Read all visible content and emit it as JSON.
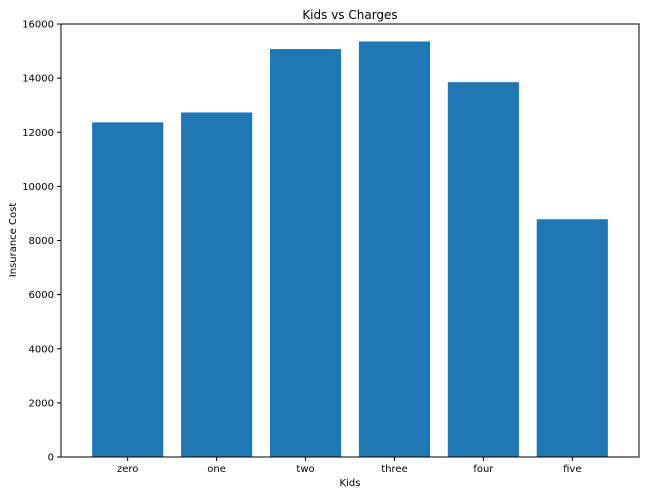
{
  "chart_data": {
    "type": "bar",
    "title": "Kids vs Charges",
    "xlabel": "Kids",
    "ylabel": "Insurance Cost",
    "categories": [
      "zero",
      "one",
      "two",
      "three",
      "four",
      "five"
    ],
    "values": [
      12366,
      12731,
      15074,
      15355,
      13851,
      8786
    ],
    "ylim": [
      0,
      16000
    ],
    "yticks": [
      0,
      2000,
      4000,
      6000,
      8000,
      10000,
      12000,
      14000,
      16000
    ],
    "bar_color": "#1f77b4",
    "grid": false,
    "legend": "none"
  }
}
